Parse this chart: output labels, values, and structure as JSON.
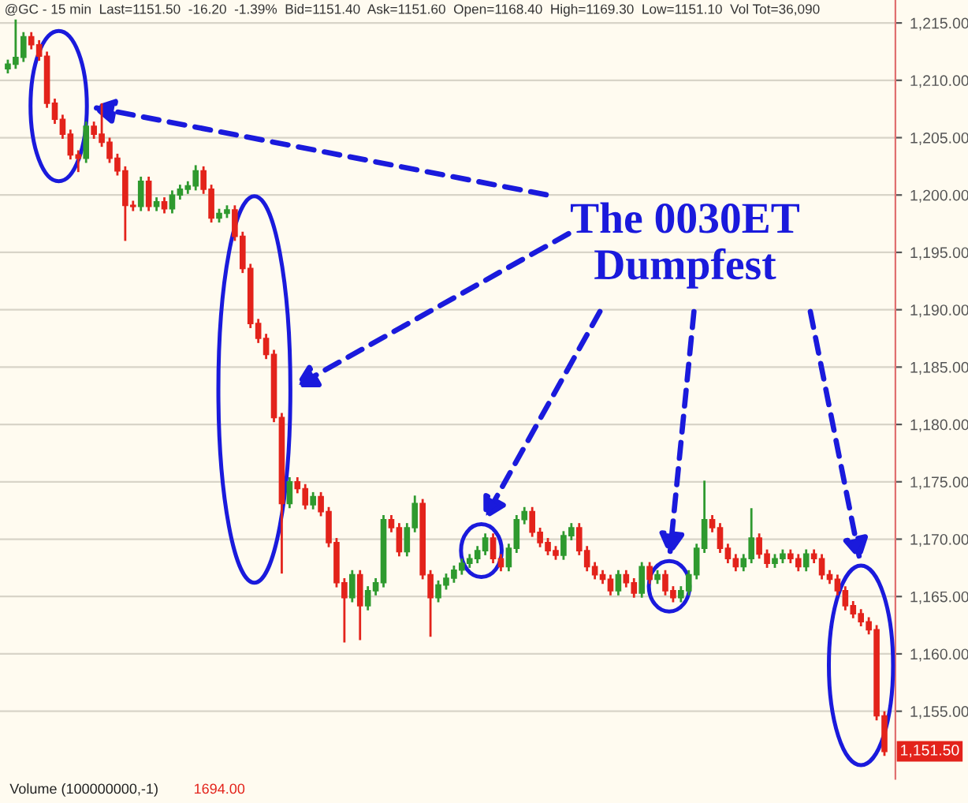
{
  "chart_data": {
    "type": "candlestick",
    "title": "@GC - 15 min  Last=1151.50  -16.20  -1.39%  Bid=1151.40  Ask=1151.60  Open=1168.40  High=1169.30  Low=1151.10  Vol Tot=36,090",
    "annotations": [
      "The 0030ET\nDumpfest",
      "Volume (100000000,-1)",
      "1694.00",
      {
        "text": "1,151.50",
        "y": 1151.5
      }
    ],
    "categories": [
      null,
      null,
      null,
      null,
      null,
      null,
      null,
      null,
      null,
      null,
      null,
      null,
      null,
      null,
      null,
      null,
      null,
      null,
      null,
      null,
      null,
      null,
      null,
      null,
      null,
      null,
      null,
      null,
      null,
      null,
      null,
      null,
      null,
      null,
      null,
      null,
      null,
      null,
      null,
      null,
      null,
      null,
      null,
      null,
      null,
      null,
      null,
      null,
      null,
      null,
      null,
      null,
      null,
      null,
      null,
      null,
      null,
      null,
      null,
      null,
      null,
      null,
      null,
      null,
      null,
      null,
      null,
      null,
      null,
      null,
      null,
      null,
      null,
      null,
      null,
      null,
      null,
      null,
      null,
      null,
      null,
      null,
      null,
      null,
      null,
      null,
      null,
      null,
      null,
      null,
      null,
      null,
      null,
      null,
      null,
      null,
      null,
      null,
      null,
      null,
      null,
      null,
      null,
      null,
      null,
      null,
      null,
      null,
      null,
      null,
      null,
      null,
      null
    ],
    "ohlc": [
      [
        1211.0,
        1211.8,
        1210.6,
        1211.4
      ],
      [
        1211.4,
        1215.3,
        1211.0,
        1212.0
      ],
      [
        1212.0,
        1214.2,
        1211.6,
        1213.8
      ],
      [
        1213.8,
        1214.2,
        1212.7,
        1213.1
      ],
      [
        1213.1,
        1213.5,
        1211.7,
        1212.1
      ],
      [
        1212.1,
        1212.5,
        1207.6,
        1208.0
      ],
      [
        1208.0,
        1208.4,
        1206.2,
        1206.6
      ],
      [
        1206.6,
        1207.0,
        1204.9,
        1205.3
      ],
      [
        1205.3,
        1205.7,
        1203.1,
        1203.5
      ],
      [
        1203.5,
        1203.9,
        1202.0,
        1203.2
      ],
      [
        1203.2,
        1206.4,
        1202.8,
        1206.0
      ],
      [
        1206.0,
        1206.4,
        1204.9,
        1205.3
      ],
      [
        1205.3,
        1208.0,
        1204.2,
        1204.6
      ],
      [
        1204.6,
        1205.0,
        1202.8,
        1203.2
      ],
      [
        1203.2,
        1203.6,
        1201.7,
        1202.1
      ],
      [
        1202.1,
        1202.5,
        1196.0,
        1199.1
      ],
      [
        1199.1,
        1199.5,
        1198.6,
        1199.0
      ],
      [
        1199.0,
        1201.6,
        1198.6,
        1201.2
      ],
      [
        1201.2,
        1201.6,
        1198.6,
        1199.0
      ],
      [
        1199.0,
        1199.8,
        1198.6,
        1199.4
      ],
      [
        1199.4,
        1199.8,
        1198.4,
        1198.8
      ],
      [
        1198.8,
        1200.4,
        1198.4,
        1200.0
      ],
      [
        1200.0,
        1200.9,
        1199.6,
        1200.5
      ],
      [
        1200.5,
        1201.2,
        1200.1,
        1200.8
      ],
      [
        1200.8,
        1202.6,
        1200.4,
        1202.1
      ],
      [
        1202.1,
        1202.5,
        1200.1,
        1200.5
      ],
      [
        1200.5,
        1200.9,
        1197.6,
        1198.0
      ],
      [
        1198.0,
        1198.8,
        1197.6,
        1198.4
      ],
      [
        1198.4,
        1199.1,
        1198.0,
        1198.7
      ],
      [
        1198.7,
        1199.1,
        1196.0,
        1196.4
      ],
      [
        1196.4,
        1196.8,
        1193.2,
        1193.6
      ],
      [
        1193.6,
        1194.0,
        1188.4,
        1188.8
      ],
      [
        1188.8,
        1189.2,
        1187.1,
        1187.5
      ],
      [
        1187.5,
        1187.9,
        1185.7,
        1186.1
      ],
      [
        1186.1,
        1186.5,
        1180.2,
        1180.6
      ],
      [
        1180.6,
        1181.0,
        1167.0,
        1173.1
      ],
      [
        1173.1,
        1175.4,
        1172.7,
        1175.0
      ],
      [
        1175.0,
        1175.4,
        1174.0,
        1174.4
      ],
      [
        1174.4,
        1174.8,
        1172.6,
        1173.0
      ],
      [
        1173.0,
        1174.1,
        1172.6,
        1173.7
      ],
      [
        1173.7,
        1174.1,
        1172.0,
        1172.4
      ],
      [
        1172.4,
        1172.8,
        1169.3,
        1169.7
      ],
      [
        1169.7,
        1170.1,
        1165.8,
        1166.2
      ],
      [
        1166.2,
        1166.6,
        1161.0,
        1164.9
      ],
      [
        1164.9,
        1167.3,
        1164.5,
        1166.9
      ],
      [
        1166.9,
        1167.3,
        1161.2,
        1164.2
      ],
      [
        1164.2,
        1165.9,
        1163.8,
        1165.5
      ],
      [
        1165.5,
        1166.6,
        1165.1,
        1166.2
      ],
      [
        1166.2,
        1172.1,
        1165.8,
        1171.7
      ],
      [
        1171.7,
        1172.1,
        1170.6,
        1171.0
      ],
      [
        1171.0,
        1171.4,
        1168.5,
        1168.9
      ],
      [
        1168.9,
        1171.4,
        1168.5,
        1171.0
      ],
      [
        1171.0,
        1173.8,
        1170.6,
        1173.1
      ],
      [
        1173.1,
        1173.5,
        1166.5,
        1166.9
      ],
      [
        1166.9,
        1167.3,
        1161.5,
        1164.9
      ],
      [
        1164.9,
        1166.4,
        1164.5,
        1166.0
      ],
      [
        1166.0,
        1167.0,
        1165.6,
        1166.6
      ],
      [
        1166.6,
        1167.7,
        1166.2,
        1167.3
      ],
      [
        1167.3,
        1168.3,
        1166.9,
        1167.9
      ],
      [
        1167.9,
        1168.7,
        1167.5,
        1168.3
      ],
      [
        1168.3,
        1169.4,
        1167.9,
        1169.0
      ],
      [
        1169.0,
        1170.5,
        1168.6,
        1170.1
      ],
      [
        1170.1,
        1170.5,
        1167.9,
        1168.3
      ],
      [
        1168.3,
        1168.7,
        1167.2,
        1167.6
      ],
      [
        1167.6,
        1169.6,
        1167.2,
        1169.2
      ],
      [
        1169.2,
        1172.1,
        1168.8,
        1171.7
      ],
      [
        1171.7,
        1172.8,
        1171.3,
        1172.4
      ],
      [
        1172.4,
        1172.8,
        1170.2,
        1170.6
      ],
      [
        1170.6,
        1171.0,
        1169.3,
        1169.7
      ],
      [
        1169.7,
        1170.1,
        1168.6,
        1169.0
      ],
      [
        1169.0,
        1169.4,
        1168.2,
        1168.6
      ],
      [
        1168.6,
        1170.7,
        1168.2,
        1170.3
      ],
      [
        1170.3,
        1171.4,
        1169.9,
        1171.0
      ],
      [
        1171.0,
        1171.4,
        1168.6,
        1169.0
      ],
      [
        1169.0,
        1169.4,
        1167.2,
        1167.6
      ],
      [
        1167.6,
        1168.0,
        1166.5,
        1166.9
      ],
      [
        1166.9,
        1167.3,
        1166.1,
        1166.5
      ],
      [
        1166.5,
        1166.9,
        1165.1,
        1165.5
      ],
      [
        1165.5,
        1167.3,
        1165.1,
        1166.9
      ],
      [
        1166.9,
        1167.3,
        1165.8,
        1166.2
      ],
      [
        1166.2,
        1166.6,
        1164.9,
        1165.3
      ],
      [
        1165.3,
        1168.0,
        1164.9,
        1167.6
      ],
      [
        1167.6,
        1168.0,
        1166.1,
        1166.5
      ],
      [
        1166.5,
        1167.3,
        1166.1,
        1166.9
      ],
      [
        1166.9,
        1167.3,
        1165.1,
        1165.5
      ],
      [
        1165.5,
        1165.9,
        1164.5,
        1164.9
      ],
      [
        1164.9,
        1165.9,
        1164.5,
        1165.5
      ],
      [
        1165.5,
        1167.3,
        1165.1,
        1166.9
      ],
      [
        1166.9,
        1169.6,
        1166.5,
        1169.2
      ],
      [
        1169.2,
        1175.1,
        1168.8,
        1171.7
      ],
      [
        1171.7,
        1172.1,
        1170.6,
        1171.0
      ],
      [
        1171.0,
        1171.4,
        1168.8,
        1169.2
      ],
      [
        1169.2,
        1169.6,
        1167.9,
        1168.3
      ],
      [
        1168.3,
        1168.7,
        1167.2,
        1167.6
      ],
      [
        1167.6,
        1168.7,
        1167.2,
        1168.3
      ],
      [
        1168.3,
        1172.7,
        1167.9,
        1170.1
      ],
      [
        1170.1,
        1170.5,
        1168.3,
        1168.7
      ],
      [
        1168.7,
        1169.1,
        1167.5,
        1167.9
      ],
      [
        1167.9,
        1168.7,
        1167.5,
        1168.3
      ],
      [
        1168.3,
        1169.1,
        1167.9,
        1168.7
      ],
      [
        1168.7,
        1169.1,
        1167.9,
        1168.3
      ],
      [
        1168.3,
        1168.7,
        1167.2,
        1167.6
      ],
      [
        1167.6,
        1169.1,
        1167.2,
        1168.7
      ],
      [
        1168.7,
        1169.1,
        1167.9,
        1168.3
      ],
      [
        1168.3,
        1168.7,
        1166.5,
        1166.9
      ],
      [
        1166.9,
        1167.3,
        1166.1,
        1166.5
      ],
      [
        1166.5,
        1166.9,
        1165.1,
        1165.5
      ],
      [
        1165.5,
        1165.9,
        1163.8,
        1164.2
      ],
      [
        1164.2,
        1164.6,
        1163.1,
        1163.5
      ],
      [
        1163.5,
        1163.9,
        1162.4,
        1162.8
      ],
      [
        1162.8,
        1163.2,
        1161.7,
        1162.1
      ],
      [
        1162.1,
        1162.5,
        1154.2,
        1154.6
      ],
      [
        1154.6,
        1155.0,
        1151.1,
        1151.5
      ]
    ],
    "ylim": [
      1149.1,
      1217.0
    ],
    "yticks": [
      {
        "value": 1155,
        "label": "1,155.00"
      },
      {
        "value": 1160,
        "label": "1,160.00"
      },
      {
        "value": 1165,
        "label": "1,165.00"
      },
      {
        "value": 1170,
        "label": "1,170.00"
      },
      {
        "value": 1175,
        "label": "1,175.00"
      },
      {
        "value": 1180,
        "label": "1,180.00"
      },
      {
        "value": 1185,
        "label": "1,185.00"
      },
      {
        "value": 1190,
        "label": "1,190.00"
      },
      {
        "value": 1195,
        "label": "1,195.00"
      },
      {
        "value": 1200,
        "label": "1,200.00"
      },
      {
        "value": 1205,
        "label": "1,205.00"
      },
      {
        "value": 1210,
        "label": "1,210.00"
      },
      {
        "value": 1215,
        "label": "1,215.00"
      }
    ],
    "grid": "y",
    "tick_labels": "y"
  }
}
